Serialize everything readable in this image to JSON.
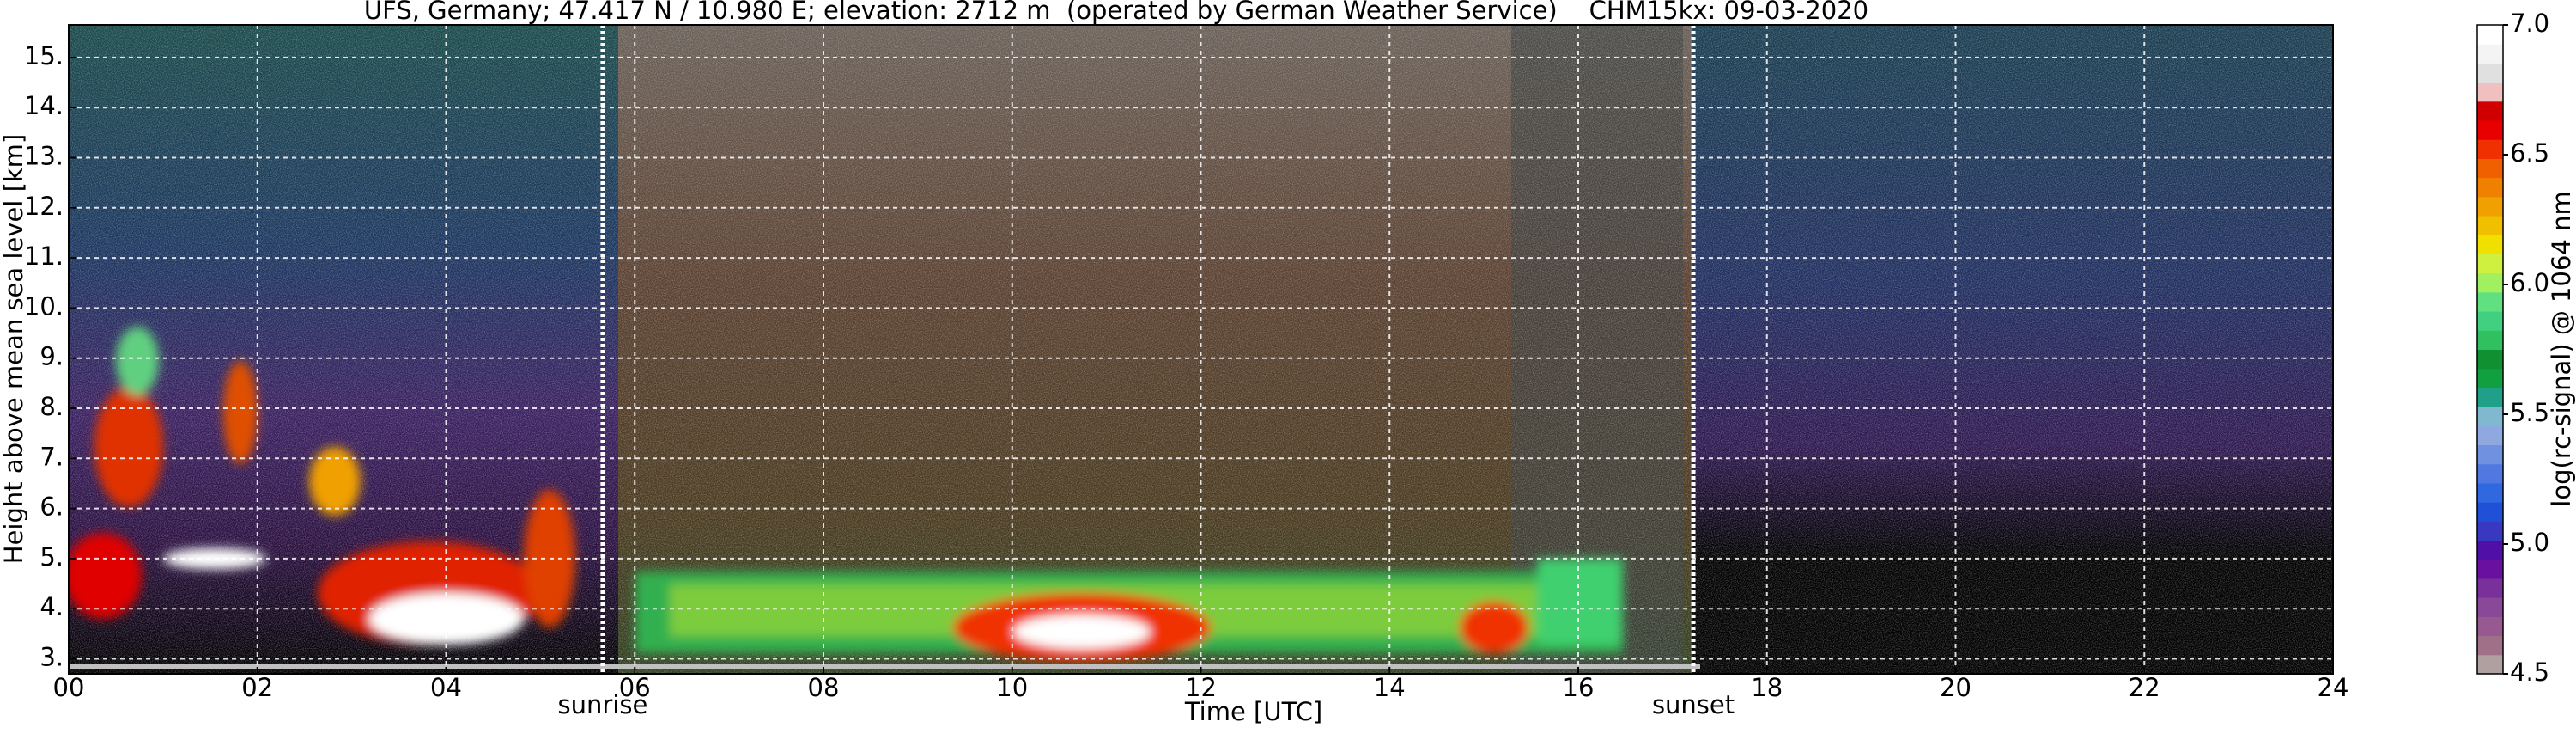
{
  "chart_data": {
    "type": "heatmap",
    "title": "UFS, Germany; 47.417 N / 10.980 E; elevation: 2712 m  (operated by German Weather Service)    CHM15kx: 09-03-2020",
    "x_label": "Time [UTC]",
    "y_label": "Height above mean sea level [km]",
    "xlim": [
      0,
      24
    ],
    "xticks": [
      {
        "value": 0,
        "label": "00"
      },
      {
        "value": 2,
        "label": "02"
      },
      {
        "value": 4,
        "label": "04"
      },
      {
        "value": 6,
        "label": "06"
      },
      {
        "value": 8,
        "label": "08"
      },
      {
        "value": 10,
        "label": "10"
      },
      {
        "value": 12,
        "label": "12"
      },
      {
        "value": 14,
        "label": "14"
      },
      {
        "value": 16,
        "label": "16"
      },
      {
        "value": 18,
        "label": "18"
      },
      {
        "value": 20,
        "label": "20"
      },
      {
        "value": 22,
        "label": "22"
      },
      {
        "value": 24,
        "label": "24"
      }
    ],
    "ylim": [
      2.7,
      15.65
    ],
    "yticks": [
      {
        "value": 3,
        "label": "3."
      },
      {
        "value": 4,
        "label": "4."
      },
      {
        "value": 5,
        "label": "5."
      },
      {
        "value": 6,
        "label": "6."
      },
      {
        "value": 7,
        "label": "7."
      },
      {
        "value": 8,
        "label": "8."
      },
      {
        "value": 9,
        "label": "9."
      },
      {
        "value": 10,
        "label": "10."
      },
      {
        "value": 11,
        "label": "11."
      },
      {
        "value": 12,
        "label": "12."
      },
      {
        "value": 13,
        "label": "13."
      },
      {
        "value": 14,
        "label": "14."
      },
      {
        "value": 15,
        "label": "15."
      }
    ],
    "grid": true,
    "events": [
      {
        "label": "sunrise",
        "x": 5.66
      },
      {
        "label": "sunset",
        "x": 17.22
      }
    ],
    "colorbar": {
      "label": "log(rc-signal) @ 1064 nm",
      "lim": [
        4.5,
        7.0
      ],
      "ticks": [
        4.5,
        {
          "value": 5,
          "label": "5.0"
        },
        5.5,
        {
          "value": 6,
          "label": "6.0"
        },
        6.5,
        {
          "value": 7,
          "label": "7.0"
        }
      ],
      "colors": [
        "#b0a0a0",
        "#a07088",
        "#985890",
        "#8a4898",
        "#7a309a",
        "#6a10a0",
        "#5010a8",
        "#3838c0",
        "#2050d8",
        "#3068e0",
        "#5078e0",
        "#7090e0",
        "#90a8e0",
        "#80b8d0",
        "#20a088",
        "#10a040",
        "#109030",
        "#30c060",
        "#40d080",
        "#60e080",
        "#a0f060",
        "#d0f040",
        "#f0e000",
        "#f0c000",
        "#f0a000",
        "#f08000",
        "#f06000",
        "#f03000",
        "#e80000",
        "#d00000",
        "#f0c0c0",
        "#e0e0e0",
        "#f4f4f4",
        "#ffffff"
      ]
    }
  }
}
